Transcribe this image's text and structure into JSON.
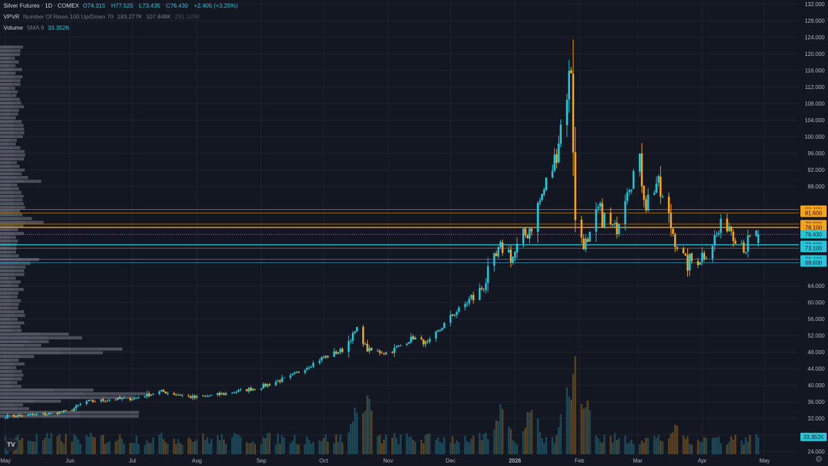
{
  "legend": {
    "title": "Silver Futures · 1D · COMEX",
    "o_label": "O",
    "o_value": "74.315",
    "h_label": "H",
    "h_value": "77.525",
    "l_label": "L",
    "l_value": "73.435",
    "c_label": "C",
    "c_value": "76.430",
    "change": "+2.405 (+3.25%)",
    "vpvr_label": "VPVR",
    "vpvr_params": "Number Of Rows 100 Up/Down 70",
    "vpvr_v1": "183.277K",
    "vpvr_v2": "107.848K",
    "vpvr_v3": "291.125K",
    "volume_label": "Volume",
    "volume_params": "SMA 9",
    "volume_value": "33.352K"
  },
  "logo_text": "TV",
  "icons": {
    "settings": "gear-icon",
    "logo": "tradingview-logo-icon"
  },
  "colors": {
    "bg": "#131722",
    "up": "#26c6da",
    "down": "#f7a21b",
    "grid": "#1f2330",
    "text": "#b2b5be"
  },
  "chart_data": {
    "type": "candlestick",
    "title": "Silver Futures · 1D · COMEX",
    "y_ticks": [
      "132.000",
      "128.000",
      "124.000",
      "120.000",
      "116.000",
      "112.000",
      "108.000",
      "104.000",
      "100.000",
      "96.000",
      "92.000",
      "88.000",
      "64.000",
      "60.000",
      "56.000",
      "52.000",
      "48.000",
      "44.000",
      "40.000",
      "36.000",
      "32.000",
      "28.000",
      "24.000"
    ],
    "ylim": [
      23,
      133
    ],
    "x_ticks": [
      "May",
      "Jun",
      "Jul",
      "Aug",
      "Sep",
      "Oct",
      "Nov",
      "Dec",
      "2026",
      "Feb",
      "Mar",
      "Apr",
      "May"
    ],
    "x_tick_dates": [
      "2025-05-01",
      "2025-06-01",
      "2025-07-01",
      "2025-08-01",
      "2025-09-01",
      "2025-10-01",
      "2025-11-01",
      "2025-12-01",
      "2026-01-01",
      "2026-02-01",
      "2026-03-01",
      "2026-04-01",
      "2026-05-01"
    ],
    "xlim": [
      "2025-05-01",
      "2026-05-01"
    ],
    "anchors": [
      {
        "date": "2025-05-01",
        "price": 32.5
      },
      {
        "date": "2025-05-20",
        "price": 33.0
      },
      {
        "date": "2025-06-01",
        "price": 33.8
      },
      {
        "date": "2025-06-08",
        "price": 36.0
      },
      {
        "date": "2025-06-20",
        "price": 36.5
      },
      {
        "date": "2025-07-01",
        "price": 36.8
      },
      {
        "date": "2025-07-15",
        "price": 38.5
      },
      {
        "date": "2025-07-31",
        "price": 37.0
      },
      {
        "date": "2025-08-15",
        "price": 38.0
      },
      {
        "date": "2025-08-31",
        "price": 39.5
      },
      {
        "date": "2025-09-15",
        "price": 42.0
      },
      {
        "date": "2025-09-30",
        "price": 46.5
      },
      {
        "date": "2025-10-10",
        "price": 48.5
      },
      {
        "date": "2025-10-17",
        "price": 53.5
      },
      {
        "date": "2025-10-22",
        "price": 48.5
      },
      {
        "date": "2025-11-01",
        "price": 47.8
      },
      {
        "date": "2025-11-13",
        "price": 51.5
      },
      {
        "date": "2025-11-20",
        "price": 50.0
      },
      {
        "date": "2025-12-01",
        "price": 56.5
      },
      {
        "date": "2025-12-15",
        "price": 62.5
      },
      {
        "date": "2025-12-26",
        "price": 73.5
      },
      {
        "date": "2025-12-31",
        "price": 71.0
      },
      {
        "date": "2026-01-09",
        "price": 79.0
      },
      {
        "date": "2026-01-20",
        "price": 94.0
      },
      {
        "date": "2026-01-28",
        "price": 117.0
      },
      {
        "date": "2026-01-30",
        "price": 79.0
      },
      {
        "date": "2026-02-05",
        "price": 73.0
      },
      {
        "date": "2026-02-10",
        "price": 82.0
      },
      {
        "date": "2026-02-18",
        "price": 77.0
      },
      {
        "date": "2026-02-24",
        "price": 89.0
      },
      {
        "date": "2026-03-02",
        "price": 93.0
      },
      {
        "date": "2026-03-05",
        "price": 84.0
      },
      {
        "date": "2026-03-10",
        "price": 89.0
      },
      {
        "date": "2026-03-18",
        "price": 77.0
      },
      {
        "date": "2026-03-24",
        "price": 69.0
      },
      {
        "date": "2026-04-01",
        "price": 71.5
      },
      {
        "date": "2026-04-13",
        "price": 79.5
      },
      {
        "date": "2026-04-22",
        "price": 73.5
      },
      {
        "date": "2026-04-28",
        "price": 76.43
      }
    ],
    "last": {
      "open": 74.315,
      "high": 77.525,
      "low": 73.435,
      "close": 76.43
    },
    "price_levels": [
      {
        "value": 82.4,
        "label": "82.400",
        "color": "#f7a21b",
        "width": 0.6
      },
      {
        "value": 81.6,
        "label": "81.600",
        "color": "#f7a21b",
        "width": 0.6
      },
      {
        "value": 78.9,
        "label": "78.900",
        "color": "#f7a21b",
        "width": 0.6
      },
      {
        "value": 78.1,
        "label": "78.100",
        "color": "#f7a21b",
        "width": 1.6
      },
      {
        "value": 73.9,
        "label": "73.900",
        "color": "#26c6da",
        "width": 1.6
      },
      {
        "value": 73.1,
        "label": "73.100",
        "color": "#26c6da",
        "width": 0.6
      },
      {
        "value": 70.4,
        "label": "70.400",
        "color": "#26c6da",
        "width": 0.6
      },
      {
        "value": 69.6,
        "label": "69.600",
        "color": "#26c6da",
        "width": 0.6
      }
    ],
    "last_price_label": "76.430",
    "volume": {
      "ylim": [
        0,
        230000
      ],
      "last_label": "33.352K",
      "base": 30000,
      "spikes": [
        {
          "date": "2025-10-17",
          "value": 110000
        },
        {
          "date": "2025-10-22",
          "value": 130000
        },
        {
          "date": "2025-12-26",
          "value": 120000
        },
        {
          "date": "2026-01-09",
          "value": 120000
        },
        {
          "date": "2026-01-26",
          "value": 140000
        },
        {
          "date": "2026-01-30",
          "value": 210000
        },
        {
          "date": "2026-02-05",
          "value": 120000
        },
        {
          "date": "2026-03-20",
          "value": 70000
        }
      ]
    },
    "vpvr": {
      "price_range": [
        32,
        122
      ],
      "rows": 100,
      "peaks": [
        {
          "price": 32.3,
          "length": 1.0
        },
        {
          "price": 36.8,
          "length": 0.95
        },
        {
          "price": 37.5,
          "length": 0.9
        },
        {
          "price": 47.8,
          "length": 0.75
        },
        {
          "price": 51.0,
          "length": 0.6
        },
        {
          "price": 79.0,
          "length": 0.3
        },
        {
          "price": 89.0,
          "length": 0.25
        },
        {
          "price": 69.5,
          "length": 0.28
        }
      ]
    }
  }
}
